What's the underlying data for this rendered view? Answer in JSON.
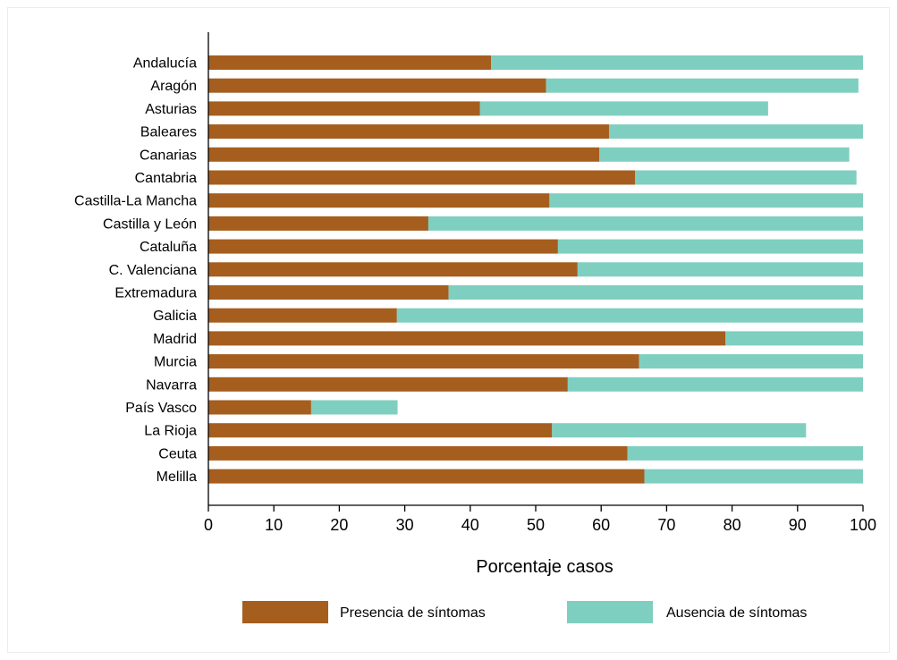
{
  "chart_data": {
    "type": "bar",
    "orientation": "horizontal",
    "stacked": true,
    "categories": [
      "Andalucía",
      "Aragón",
      "Asturias",
      "Baleares",
      "Canarias",
      "Cantabria",
      "Castilla-La Mancha",
      "Castilla y León",
      "Cataluña",
      "C. Valenciana",
      "Extremadura",
      "Galicia",
      "Madrid",
      "Murcia",
      "Navarra",
      "País Vasco",
      "La Rioja",
      "Ceuta",
      "Melilla"
    ],
    "series": [
      {
        "name": "Presencia de síntomas",
        "color": "#a65e1e",
        "values": [
          43.2,
          51.6,
          41.5,
          61.2,
          59.7,
          65.2,
          52.1,
          33.6,
          53.4,
          56.4,
          36.7,
          28.8,
          79.0,
          65.8,
          54.9,
          15.7,
          52.5,
          64.0,
          66.6
        ]
      },
      {
        "name": "Ausencia de síntomas",
        "color": "#7fcfc0",
        "values": [
          56.8,
          47.7,
          44.0,
          38.8,
          38.2,
          33.8,
          47.9,
          66.4,
          46.6,
          43.6,
          63.3,
          71.2,
          21.0,
          34.2,
          45.1,
          13.2,
          38.8,
          36.0,
          33.4
        ]
      }
    ],
    "xlabel": "Porcentaje casos",
    "ylabel": "",
    "title": "",
    "xlim": [
      0,
      100
    ],
    "xticks": [
      0,
      10,
      20,
      30,
      40,
      50,
      60,
      70,
      80,
      90,
      100
    ],
    "grid": false,
    "legend_position": "bottom"
  }
}
